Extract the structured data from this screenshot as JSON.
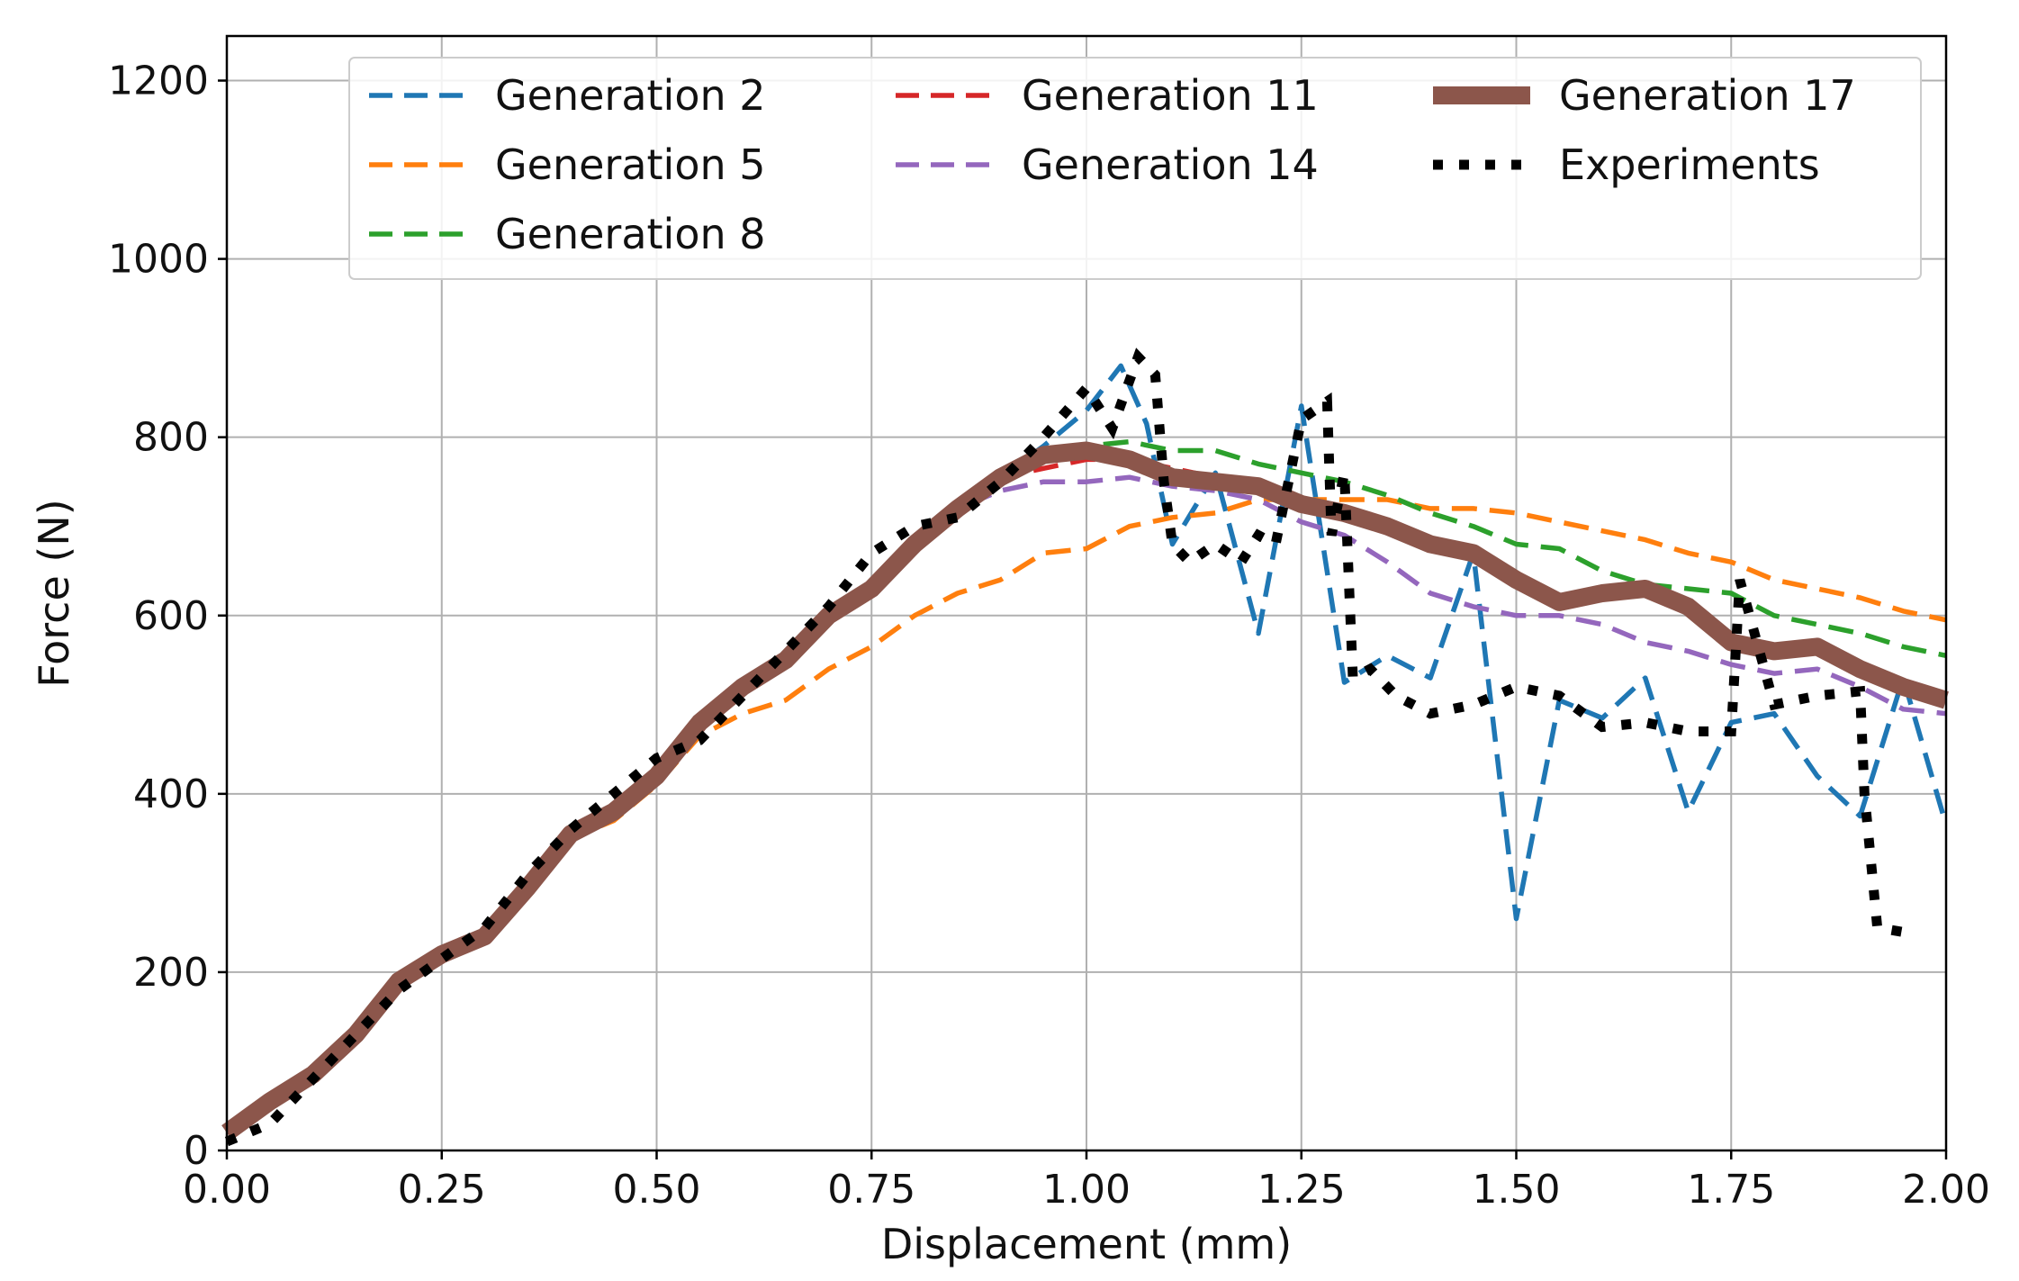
{
  "chart_data": {
    "type": "line",
    "title": "",
    "xlabel": "Displacement (mm)",
    "ylabel": "Force (N)",
    "xlim": [
      0,
      2.0
    ],
    "ylim": [
      0,
      1250
    ],
    "xticks": [
      0,
      0.25,
      0.5,
      0.75,
      1.0,
      1.25,
      1.5,
      1.75,
      2.0
    ],
    "xtick_labels": [
      "0.00",
      "0.25",
      "0.50",
      "0.75",
      "1.00",
      "1.25",
      "1.50",
      "1.75",
      "2.00"
    ],
    "yticks": [
      0,
      200,
      400,
      600,
      800,
      1000,
      1200
    ],
    "ytick_labels": [
      "0",
      "200",
      "400",
      "600",
      "800",
      "1000",
      "1200"
    ],
    "grid": true,
    "legend_position": "top",
    "series": [
      {
        "name": "Generation 2",
        "color": "#1f77b4",
        "style": "dashed",
        "x": [
          0,
          0.05,
          0.1,
          0.15,
          0.2,
          0.25,
          0.3,
          0.35,
          0.4,
          0.45,
          0.5,
          0.55,
          0.6,
          0.65,
          0.7,
          0.75,
          0.8,
          0.85,
          0.9,
          0.95,
          1.0,
          1.04,
          1.07,
          1.1,
          1.15,
          1.2,
          1.25,
          1.3,
          1.35,
          1.4,
          1.45,
          1.5,
          1.55,
          1.6,
          1.65,
          1.7,
          1.75,
          1.8,
          1.85,
          1.9,
          1.95,
          2.0
        ],
        "y": [
          20,
          55,
          85,
          130,
          190,
          220,
          240,
          295,
          355,
          380,
          420,
          480,
          520,
          550,
          600,
          630,
          680,
          720,
          755,
          790,
          830,
          880,
          815,
          680,
          760,
          580,
          835,
          525,
          555,
          530,
          670,
          260,
          505,
          485,
          530,
          380,
          480,
          490,
          420,
          375,
          530,
          365
        ]
      },
      {
        "name": "Generation 5",
        "color": "#ff7f0e",
        "style": "dashed",
        "x": [
          0,
          0.05,
          0.1,
          0.15,
          0.2,
          0.25,
          0.3,
          0.35,
          0.4,
          0.45,
          0.5,
          0.55,
          0.6,
          0.65,
          0.7,
          0.75,
          0.8,
          0.85,
          0.9,
          0.95,
          1.0,
          1.05,
          1.1,
          1.15,
          1.2,
          1.25,
          1.3,
          1.35,
          1.4,
          1.45,
          1.5,
          1.55,
          1.6,
          1.65,
          1.7,
          1.75,
          1.8,
          1.85,
          1.9,
          1.95,
          2.0
        ],
        "y": [
          20,
          55,
          85,
          130,
          190,
          220,
          240,
          290,
          350,
          370,
          410,
          465,
          490,
          505,
          540,
          565,
          600,
          625,
          640,
          670,
          675,
          700,
          710,
          715,
          730,
          730,
          730,
          730,
          720,
          720,
          715,
          705,
          695,
          685,
          670,
          660,
          640,
          630,
          620,
          605,
          595
        ]
      },
      {
        "name": "Generation 8",
        "color": "#2ca02c",
        "style": "dashed",
        "x": [
          0,
          0.05,
          0.1,
          0.15,
          0.2,
          0.25,
          0.3,
          0.35,
          0.4,
          0.45,
          0.5,
          0.55,
          0.6,
          0.65,
          0.7,
          0.75,
          0.8,
          0.85,
          0.9,
          0.95,
          1.0,
          1.05,
          1.1,
          1.15,
          1.2,
          1.25,
          1.3,
          1.35,
          1.4,
          1.45,
          1.5,
          1.55,
          1.6,
          1.65,
          1.7,
          1.75,
          1.8,
          1.85,
          1.9,
          1.95,
          2.0
        ],
        "y": [
          20,
          55,
          85,
          130,
          190,
          220,
          240,
          295,
          355,
          380,
          420,
          480,
          520,
          550,
          600,
          630,
          680,
          720,
          755,
          780,
          790,
          795,
          785,
          785,
          770,
          760,
          750,
          735,
          715,
          700,
          680,
          675,
          650,
          635,
          630,
          625,
          600,
          590,
          580,
          565,
          555
        ]
      },
      {
        "name": "Generation 11",
        "color": "#d62728",
        "style": "dashed",
        "x": [
          0,
          0.05,
          0.1,
          0.15,
          0.2,
          0.25,
          0.3,
          0.35,
          0.4,
          0.45,
          0.5,
          0.55,
          0.6,
          0.65,
          0.7,
          0.75,
          0.8,
          0.85,
          0.9,
          0.95,
          1.0,
          1.05,
          1.1,
          1.15,
          1.2,
          1.25,
          1.3,
          1.35,
          1.4,
          1.45,
          1.5,
          1.55,
          1.6,
          1.65,
          1.7,
          1.75,
          1.8,
          1.85,
          1.9,
          1.95,
          2.0
        ],
        "y": [
          20,
          55,
          85,
          130,
          190,
          220,
          240,
          295,
          355,
          380,
          420,
          480,
          520,
          550,
          600,
          630,
          680,
          720,
          755,
          765,
          775,
          775,
          765,
          755,
          745,
          725,
          715,
          695,
          680,
          670,
          640,
          615,
          625,
          630,
          610,
          570,
          560,
          565,
          540,
          520,
          505
        ]
      },
      {
        "name": "Generation 14",
        "color": "#9467bd",
        "style": "dashed",
        "x": [
          0,
          0.05,
          0.1,
          0.15,
          0.2,
          0.25,
          0.3,
          0.35,
          0.4,
          0.45,
          0.5,
          0.55,
          0.6,
          0.65,
          0.7,
          0.75,
          0.8,
          0.85,
          0.9,
          0.95,
          1.0,
          1.05,
          1.1,
          1.15,
          1.2,
          1.25,
          1.3,
          1.35,
          1.4,
          1.45,
          1.5,
          1.55,
          1.6,
          1.65,
          1.7,
          1.75,
          1.8,
          1.85,
          1.9,
          1.95,
          2.0
        ],
        "y": [
          20,
          55,
          85,
          130,
          190,
          220,
          240,
          295,
          355,
          380,
          420,
          480,
          520,
          550,
          600,
          630,
          680,
          720,
          740,
          750,
          750,
          755,
          745,
          740,
          730,
          705,
          690,
          660,
          625,
          610,
          600,
          600,
          590,
          570,
          560,
          545,
          535,
          540,
          520,
          495,
          490
        ]
      },
      {
        "name": "Generation 17",
        "color": "#8c564b",
        "style": "solid-thick",
        "x": [
          0,
          0.05,
          0.1,
          0.15,
          0.2,
          0.25,
          0.3,
          0.35,
          0.4,
          0.45,
          0.5,
          0.55,
          0.6,
          0.65,
          0.7,
          0.75,
          0.8,
          0.85,
          0.9,
          0.95,
          1.0,
          1.05,
          1.1,
          1.15,
          1.2,
          1.25,
          1.3,
          1.35,
          1.4,
          1.45,
          1.5,
          1.55,
          1.6,
          1.65,
          1.7,
          1.75,
          1.8,
          1.85,
          1.9,
          1.95,
          2.0
        ],
        "y": [
          20,
          55,
          85,
          130,
          190,
          220,
          240,
          295,
          355,
          380,
          420,
          480,
          520,
          550,
          600,
          630,
          680,
          720,
          755,
          780,
          785,
          775,
          755,
          750,
          745,
          725,
          715,
          700,
          680,
          670,
          640,
          615,
          625,
          630,
          610,
          570,
          560,
          565,
          540,
          520,
          505
        ]
      },
      {
        "name": "Experiments",
        "color": "#000000",
        "style": "dotted",
        "x": [
          0,
          0.05,
          0.1,
          0.15,
          0.2,
          0.25,
          0.3,
          0.35,
          0.4,
          0.45,
          0.5,
          0.55,
          0.6,
          0.65,
          0.7,
          0.75,
          0.8,
          0.85,
          0.9,
          0.95,
          1.0,
          1.03,
          1.06,
          1.08,
          1.09,
          1.1,
          1.12,
          1.15,
          1.18,
          1.2,
          1.22,
          1.25,
          1.28,
          1.285,
          1.3,
          1.31,
          1.33,
          1.36,
          1.38,
          1.39,
          1.4,
          1.45,
          1.5,
          1.55,
          1.6,
          1.65,
          1.7,
          1.75,
          1.76,
          1.8,
          1.85,
          1.9,
          1.905,
          1.92,
          1.95
        ],
        "y": [
          10,
          30,
          80,
          130,
          180,
          215,
          250,
          310,
          360,
          400,
          440,
          460,
          510,
          560,
          610,
          670,
          700,
          710,
          750,
          800,
          855,
          810,
          890,
          870,
          750,
          680,
          660,
          680,
          660,
          690,
          680,
          820,
          840,
          690,
          760,
          530,
          540,
          510,
          500,
          495,
          490,
          500,
          520,
          510,
          475,
          480,
          470,
          470,
          640,
          500,
          510,
          515,
          400,
          250,
          245
        ]
      }
    ]
  }
}
